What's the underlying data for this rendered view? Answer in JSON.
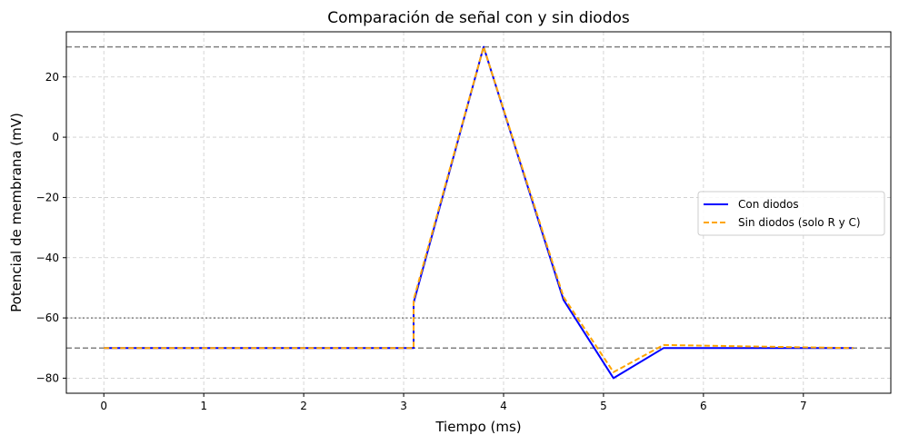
{
  "chart_data": {
    "type": "line",
    "title": "Comparación de señal con y sin diodos",
    "xlabel": "Tiempo (ms)",
    "ylabel": "Potencial de membrana (mV)",
    "xlim": [
      -0.375,
      7.875
    ],
    "ylim": [
      -85,
      35
    ],
    "xticks": [
      0,
      1,
      2,
      3,
      4,
      5,
      6,
      7
    ],
    "yticks": [
      -80,
      -60,
      -40,
      -20,
      0,
      20
    ],
    "grid": true,
    "legend_position": "center-right",
    "series": [
      {
        "name": "Con diodos",
        "color": "#0000ff",
        "style": "solid",
        "x": [
          0,
          3.1,
          3.1,
          3.8,
          4.6,
          5.1,
          5.6,
          7.5
        ],
        "y": [
          -70,
          -70,
          -55,
          30,
          -54,
          -80,
          -70,
          -70
        ]
      },
      {
        "name": "Sin diodos (solo R y C)",
        "color": "#ffa500",
        "style": "dashed",
        "x": [
          0,
          3.1,
          3.1,
          3.8,
          4.6,
          5.1,
          5.6,
          7.5
        ],
        "y": [
          -70,
          -70,
          -54,
          30,
          -53,
          -78,
          -69,
          -70
        ]
      }
    ],
    "reference_lines": [
      {
        "y": 30,
        "style": "dashed",
        "color": "#808080"
      },
      {
        "y": -60,
        "style": "dotted",
        "color": "#808080"
      },
      {
        "y": -70,
        "style": "dashed",
        "color": "#808080"
      }
    ]
  }
}
